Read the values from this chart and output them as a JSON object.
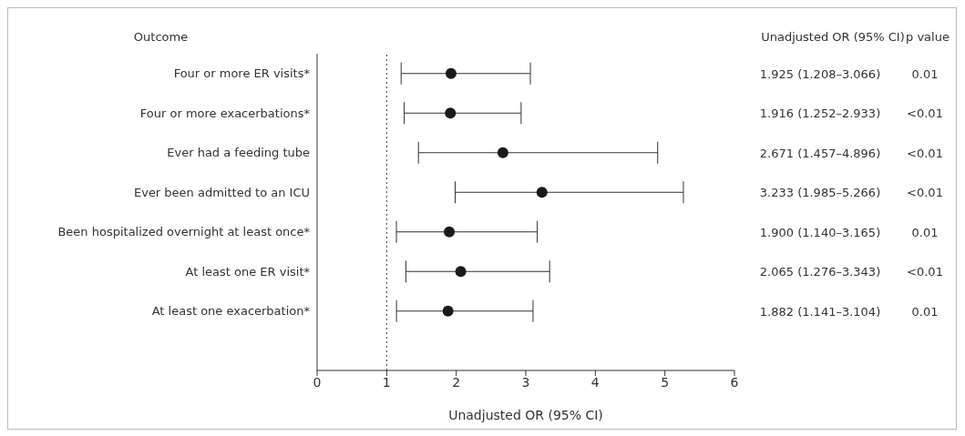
{
  "chart_data": {
    "type": "scatter",
    "orientation": "horizontal",
    "ylabel": "Outcome",
    "xlabel": "Unadjusted OR (95% CI)",
    "categories": [
      "Four or more ER visits*",
      "Four or more exacerbations*",
      "Ever had a feeding tube",
      "Ever been admitted to an ICU",
      "Been hospitalized overnight at least once*",
      "At least one ER visit*",
      "At least one exacerbation*"
    ],
    "series": [
      {
        "color": "#1a1a1a",
        "values": [
          1.925,
          1.916,
          2.671,
          3.233,
          1.9,
          2.065,
          1.882
        ],
        "errors": [
          [
            1.208,
            3.066
          ],
          [
            1.252,
            2.933
          ],
          [
            1.457,
            4.896
          ],
          [
            1.985,
            5.266
          ],
          [
            1.14,
            3.165
          ],
          [
            1.276,
            3.343
          ],
          [
            1.141,
            3.104
          ]
        ],
        "value_labels": [
          "1.925 (1.208–3.066)",
          "1.916 (1.252–2.933)",
          "2.671 (1.457–4.896)",
          "3.233 (1.985–5.266)",
          "1.900 (1.140–3.165)",
          "2.065 (1.276–3.343)",
          "1.882 (1.141–3.104)"
        ]
      }
    ],
    "annotations": [
      "Unadjusted OR (95% CI)",
      "p value",
      "0.01",
      "<0.01",
      "<0.01",
      "<0.01",
      "0.01",
      "<0.01",
      "0.01"
    ],
    "xlim": [
      0,
      6
    ],
    "xticks": [
      0,
      1,
      2,
      3,
      4,
      5,
      6
    ],
    "ref_lines": [
      {
        "axis": "x",
        "value": 1,
        "line_style": "dotted",
        "color": "#333333"
      }
    ],
    "marker": "circle"
  }
}
